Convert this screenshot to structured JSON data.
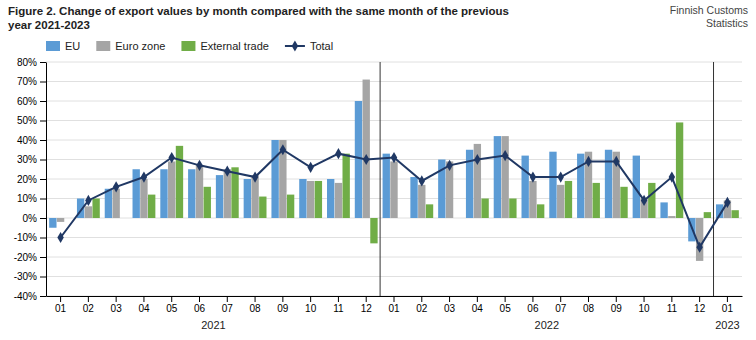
{
  "chart_data": {
    "type": "bar",
    "title": "Figure 2. Change of export values by month compared with the same month of the previous\nyear 2021-2023",
    "subtitle": "Finnish Customs\nStatistics",
    "annotations": [
      "2021",
      "2022",
      "2023"
    ],
    "categories": [
      "01",
      "02",
      "03",
      "04",
      "05",
      "06",
      "07",
      "08",
      "09",
      "10",
      "11",
      "12",
      "01",
      "02",
      "03",
      "04",
      "05",
      "06",
      "07",
      "08",
      "09",
      "10",
      "11",
      "12",
      "01"
    ],
    "series": [
      {
        "name": "EU",
        "type": "bar",
        "color": "#5B9BD5",
        "values": [
          -5,
          10,
          15,
          25,
          25,
          25,
          22,
          20,
          40,
          20,
          20,
          60,
          33,
          21,
          30,
          35,
          42,
          32,
          34,
          33,
          35,
          32,
          8,
          -12,
          7
        ]
      },
      {
        "name": "Euro zone",
        "type": "bar",
        "color": "#A5A5A5",
        "values": [
          -2,
          6,
          15,
          20,
          29,
          27,
          25,
          22,
          40,
          19,
          18,
          71,
          29,
          17,
          29,
          38,
          42,
          19,
          17,
          34,
          34,
          10,
          1,
          -22,
          9
        ]
      },
      {
        "name": "External trade",
        "type": "bar",
        "color": "#70AD47",
        "values": [
          0,
          10,
          0,
          12,
          37,
          16,
          26,
          11,
          12,
          19,
          33,
          -13,
          0,
          7,
          0,
          10,
          10,
          7,
          19,
          18,
          16,
          18,
          49,
          3,
          4
        ]
      },
      {
        "name": "Total",
        "type": "line",
        "color": "#203864",
        "marker": "diamond",
        "values": [
          -10,
          9,
          16,
          21,
          31,
          27,
          24,
          21,
          35,
          26,
          33,
          30,
          31,
          19,
          27,
          30,
          32,
          21,
          21,
          29,
          29,
          9,
          21,
          -15,
          8
        ]
      }
    ],
    "ylim": [
      -40,
      80
    ],
    "yticks": [
      {
        "value": -40,
        "label": "-40%"
      },
      {
        "value": -30,
        "label": "-30%"
      },
      {
        "value": -20,
        "label": "-20%"
      },
      {
        "value": -10,
        "label": "-10%"
      },
      {
        "value": 0,
        "label": "0%"
      },
      {
        "value": 10,
        "label": "10%"
      },
      {
        "value": 20,
        "label": "20%"
      },
      {
        "value": 30,
        "label": "30%"
      },
      {
        "value": 40,
        "label": "40%"
      },
      {
        "value": 50,
        "label": "50%"
      },
      {
        "value": 60,
        "label": "60%"
      },
      {
        "value": 70,
        "label": "70%"
      },
      {
        "value": 80,
        "label": "80%"
      }
    ],
    "grid": true,
    "legend": "upper left"
  }
}
